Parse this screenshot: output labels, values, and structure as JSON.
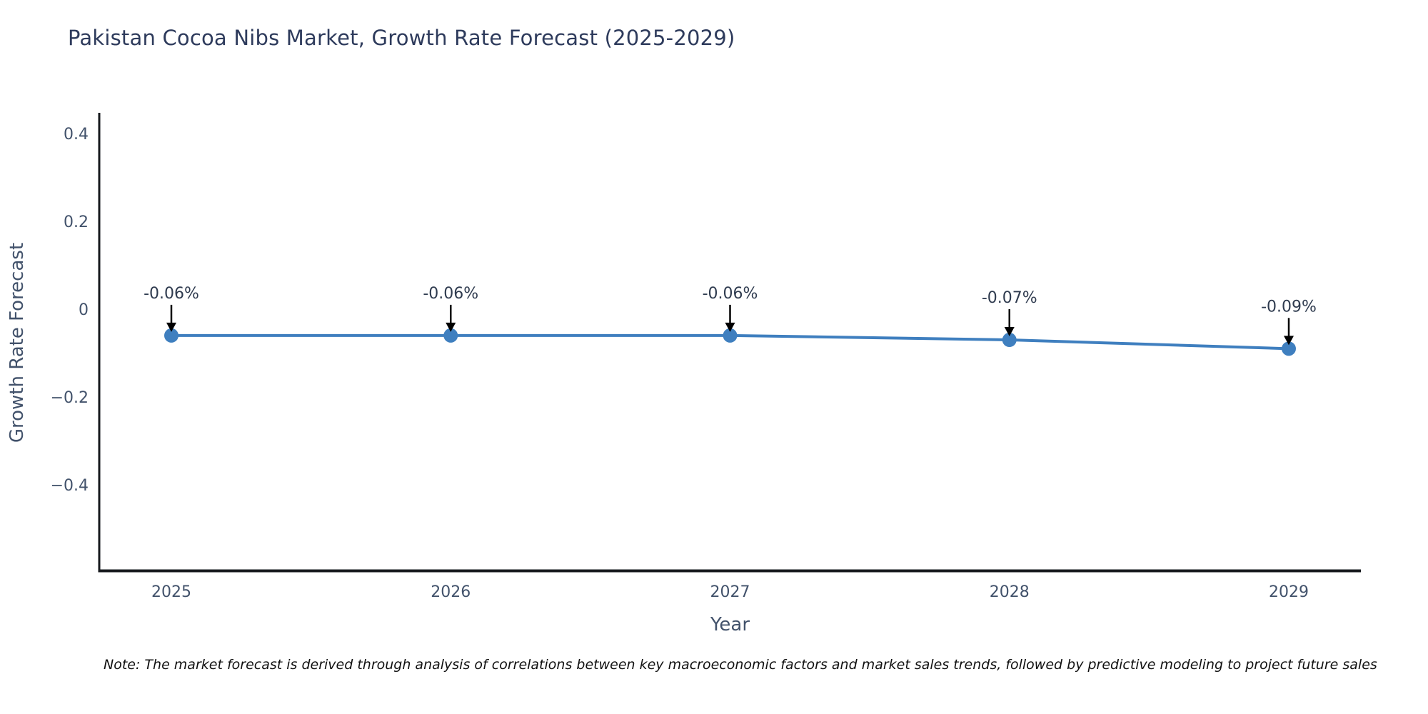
{
  "title": "Pakistan Cocoa Nibs Market, Growth Rate Forecast (2025-2029)",
  "note": "Note: The market forecast is derived through analysis of correlations between key macroeconomic factors and market sales trends, followed by predictive modeling to project future sales",
  "chart_data": {
    "type": "line",
    "x": [
      2025,
      2026,
      2027,
      2028,
      2029
    ],
    "series": [
      {
        "name": "Growth Rate Forecast",
        "values": [
          -0.06,
          -0.06,
          -0.06,
          -0.07,
          -0.09
        ]
      }
    ],
    "point_labels": [
      "-0.06%",
      "-0.06%",
      "-0.06%",
      "-0.07%",
      "-0.09%"
    ],
    "title": "Pakistan Cocoa Nibs Market, Growth Rate Forecast (2025-2029)",
    "xlabel": "Year",
    "ylabel": "Growth Rate Forecast",
    "y_ticks": [
      0.4,
      0.2,
      0,
      -0.2,
      -0.4
    ],
    "y_tick_labels": [
      "0.4",
      "0.2",
      "0",
      "−0.2",
      "−0.4"
    ],
    "ylim": [
      -0.6,
      0.45
    ],
    "grid": false,
    "legend": false,
    "line_color": "#3f7fbf",
    "marker_color": "#3f7fbf",
    "annotation_arrow_color": "#000000"
  },
  "colors": {
    "title_text": "#2e3b5c",
    "tick_label": "#42526b",
    "annotation_text": "#2f3b4f",
    "axis_line": "#16191d",
    "background": "#ffffff",
    "note_text": "#111111"
  }
}
